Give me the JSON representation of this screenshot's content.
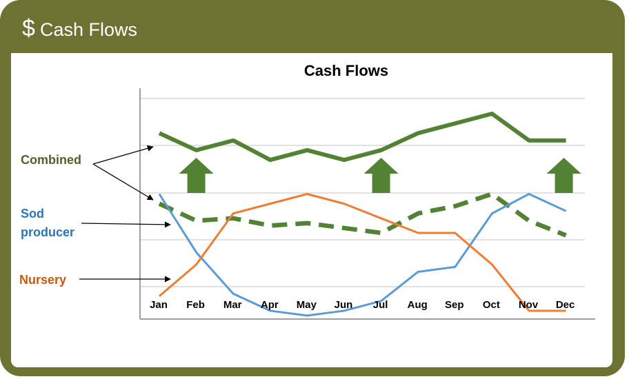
{
  "header": {
    "title": "Cash Flows",
    "icon": "dollar-icon",
    "icon_glyph": "$"
  },
  "colors": {
    "frame": "#6d7232",
    "combined": "#548235",
    "sod": "#5b9bd5",
    "nursery": "#ed7d31",
    "combined_label": "#4f6228",
    "sod_label": "#2e75b6",
    "nursery_label": "#c55a11",
    "arrow": "#548235"
  },
  "chart_data": {
    "type": "line",
    "title": "Cash Flows",
    "categories": [
      "Jan",
      "Feb",
      "Mar",
      "Apr",
      "May",
      "Jun",
      "Jul",
      "Aug",
      "Sep",
      "Oct",
      "Nov",
      "Dec"
    ],
    "ylim": [
      0,
      9.5
    ],
    "grid": true,
    "series": [
      {
        "name": "Combined",
        "style": "solid-thick",
        "values": [
          7.5,
          6.8,
          7.2,
          6.4,
          6.8,
          6.4,
          6.8,
          7.5,
          7.9,
          8.3,
          7.2,
          7.2
        ]
      },
      {
        "name": "Combined (dashed)",
        "style": "dashed-thick",
        "values": [
          4.6,
          3.9,
          4.0,
          3.7,
          3.8,
          3.6,
          3.4,
          4.2,
          4.5,
          5.0,
          3.9,
          3.3
        ]
      },
      {
        "name": "Sod producer",
        "style": "solid",
        "values": [
          5.0,
          2.6,
          0.9,
          0.2,
          0.0,
          0.2,
          0.6,
          1.8,
          2.0,
          4.2,
          5.0,
          4.3
        ]
      },
      {
        "name": "Nursery",
        "style": "solid",
        "values": [
          0.8,
          2.1,
          4.2,
          4.6,
          5.0,
          4.6,
          4.0,
          3.4,
          3.4,
          2.1,
          0.2,
          0.2
        ]
      }
    ],
    "annotations": {
      "combined_label": "Combined",
      "sod_label_line1": "Sod",
      "sod_label_line2": "producer",
      "nursery_label": "Nursery",
      "up_arrows_at": [
        "Feb",
        "Jul",
        "Dec"
      ]
    }
  }
}
